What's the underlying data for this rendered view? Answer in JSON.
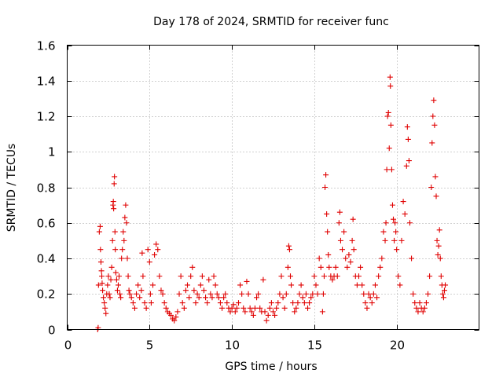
{
  "chart_data": {
    "type": "scatter",
    "title": "Day 178 of 2024, SRMTID for receiver func",
    "xlabel": "GPS time / hours",
    "ylabel": "SRMTID / TECUs",
    "xlim": [
      0,
      25
    ],
    "ylim": [
      0,
      1.6
    ],
    "xticks": [
      0,
      5,
      10,
      15,
      20
    ],
    "xtick_labels": [
      "0",
      "5",
      "10",
      "15",
      "20"
    ],
    "yticks": [
      0,
      0.2,
      0.4,
      0.6,
      0.8,
      1.0,
      1.2,
      1.4,
      1.6
    ],
    "ytick_labels": [
      "0",
      "0.2",
      "0.4",
      "0.6",
      "0.8",
      "1",
      "1.2",
      "1.4",
      "1.6"
    ],
    "grid": true,
    "marker": "plus",
    "color": "#e00000",
    "series": [
      {
        "name": "SRMTID",
        "points": [
          [
            1.85,
            0.0
          ],
          [
            1.88,
            0.01
          ],
          [
            1.9,
            0.25
          ],
          [
            1.95,
            0.55
          ],
          [
            2.0,
            0.58
          ],
          [
            2.02,
            0.45
          ],
          [
            2.05,
            0.38
          ],
          [
            2.08,
            0.33
          ],
          [
            2.1,
            0.3
          ],
          [
            2.12,
            0.26
          ],
          [
            2.15,
            0.22
          ],
          [
            2.2,
            0.18
          ],
          [
            2.25,
            0.15
          ],
          [
            2.3,
            0.12
          ],
          [
            2.35,
            0.09
          ],
          [
            2.4,
            0.2
          ],
          [
            2.45,
            0.25
          ],
          [
            2.5,
            0.3
          ],
          [
            2.55,
            0.2
          ],
          [
            2.6,
            0.18
          ],
          [
            2.65,
            0.28
          ],
          [
            2.7,
            0.35
          ],
          [
            2.75,
            0.5
          ],
          [
            2.78,
            0.7
          ],
          [
            2.8,
            0.72
          ],
          [
            2.82,
            0.68
          ],
          [
            2.85,
            0.82
          ],
          [
            2.87,
            0.86
          ],
          [
            2.9,
            0.55
          ],
          [
            2.92,
            0.45
          ],
          [
            2.95,
            0.32
          ],
          [
            3.0,
            0.28
          ],
          [
            3.05,
            0.22
          ],
          [
            3.1,
            0.25
          ],
          [
            3.15,
            0.3
          ],
          [
            3.2,
            0.2
          ],
          [
            3.25,
            0.18
          ],
          [
            3.3,
            0.4
          ],
          [
            3.35,
            0.45
          ],
          [
            3.4,
            0.55
          ],
          [
            3.45,
            0.5
          ],
          [
            3.5,
            0.63
          ],
          [
            3.55,
            0.7
          ],
          [
            3.6,
            0.6
          ],
          [
            3.65,
            0.4
          ],
          [
            3.7,
            0.3
          ],
          [
            3.75,
            0.22
          ],
          [
            3.8,
            0.2
          ],
          [
            3.9,
            0.18
          ],
          [
            4.0,
            0.15
          ],
          [
            4.1,
            0.12
          ],
          [
            4.2,
            0.2
          ],
          [
            4.3,
            0.25
          ],
          [
            4.4,
            0.18
          ],
          [
            4.5,
            0.22
          ],
          [
            4.55,
            0.43
          ],
          [
            4.6,
            0.3
          ],
          [
            4.7,
            0.15
          ],
          [
            4.8,
            0.12
          ],
          [
            4.9,
            0.45
          ],
          [
            5.0,
            0.38
          ],
          [
            5.05,
            0.2
          ],
          [
            5.1,
            0.15
          ],
          [
            5.2,
            0.25
          ],
          [
            5.3,
            0.42
          ],
          [
            5.4,
            0.48
          ],
          [
            5.5,
            0.45
          ],
          [
            5.6,
            0.3
          ],
          [
            5.7,
            0.22
          ],
          [
            5.8,
            0.2
          ],
          [
            5.9,
            0.15
          ],
          [
            6.0,
            0.12
          ],
          [
            6.1,
            0.1
          ],
          [
            6.2,
            0.09
          ],
          [
            6.3,
            0.08
          ],
          [
            6.4,
            0.06
          ],
          [
            6.5,
            0.05
          ],
          [
            6.6,
            0.07
          ],
          [
            6.7,
            0.1
          ],
          [
            6.8,
            0.2
          ],
          [
            6.9,
            0.3
          ],
          [
            7.0,
            0.15
          ],
          [
            7.1,
            0.12
          ],
          [
            7.2,
            0.22
          ],
          [
            7.3,
            0.25
          ],
          [
            7.4,
            0.18
          ],
          [
            7.5,
            0.3
          ],
          [
            7.6,
            0.35
          ],
          [
            7.7,
            0.22
          ],
          [
            7.8,
            0.15
          ],
          [
            7.9,
            0.2
          ],
          [
            8.0,
            0.18
          ],
          [
            8.1,
            0.25
          ],
          [
            8.2,
            0.3
          ],
          [
            8.3,
            0.22
          ],
          [
            8.4,
            0.18
          ],
          [
            8.5,
            0.15
          ],
          [
            8.6,
            0.28
          ],
          [
            8.7,
            0.2
          ],
          [
            8.8,
            0.18
          ],
          [
            8.9,
            0.3
          ],
          [
            9.0,
            0.25
          ],
          [
            9.1,
            0.2
          ],
          [
            9.2,
            0.18
          ],
          [
            9.3,
            0.15
          ],
          [
            9.4,
            0.12
          ],
          [
            9.5,
            0.18
          ],
          [
            9.6,
            0.2
          ],
          [
            9.7,
            0.15
          ],
          [
            9.8,
            0.12
          ],
          [
            9.9,
            0.1
          ],
          [
            10.0,
            0.12
          ],
          [
            10.1,
            0.14
          ],
          [
            10.2,
            0.1
          ],
          [
            10.3,
            0.12
          ],
          [
            10.4,
            0.15
          ],
          [
            10.5,
            0.25
          ],
          [
            10.6,
            0.2
          ],
          [
            10.7,
            0.12
          ],
          [
            10.8,
            0.1
          ],
          [
            10.9,
            0.27
          ],
          [
            11.0,
            0.2
          ],
          [
            11.1,
            0.12
          ],
          [
            11.2,
            0.1
          ],
          [
            11.3,
            0.08
          ],
          [
            11.4,
            0.12
          ],
          [
            11.5,
            0.18
          ],
          [
            11.6,
            0.2
          ],
          [
            11.7,
            0.12
          ],
          [
            11.8,
            0.1
          ],
          [
            11.9,
            0.28
          ],
          [
            12.0,
            0.1
          ],
          [
            12.1,
            0.05
          ],
          [
            12.2,
            0.08
          ],
          [
            12.3,
            0.12
          ],
          [
            12.4,
            0.15
          ],
          [
            12.5,
            0.1
          ],
          [
            12.6,
            0.08
          ],
          [
            12.7,
            0.12
          ],
          [
            12.8,
            0.15
          ],
          [
            12.9,
            0.2
          ],
          [
            13.0,
            0.3
          ],
          [
            13.1,
            0.18
          ],
          [
            13.2,
            0.12
          ],
          [
            13.3,
            0.2
          ],
          [
            13.4,
            0.35
          ],
          [
            13.45,
            0.47
          ],
          [
            13.5,
            0.45
          ],
          [
            13.55,
            0.3
          ],
          [
            13.6,
            0.25
          ],
          [
            13.7,
            0.15
          ],
          [
            13.8,
            0.1
          ],
          [
            13.9,
            0.12
          ],
          [
            14.0,
            0.15
          ],
          [
            14.1,
            0.2
          ],
          [
            14.2,
            0.25
          ],
          [
            14.3,
            0.18
          ],
          [
            14.4,
            0.15
          ],
          [
            14.5,
            0.2
          ],
          [
            14.6,
            0.12
          ],
          [
            14.7,
            0.15
          ],
          [
            14.8,
            0.18
          ],
          [
            14.9,
            0.2
          ],
          [
            15.0,
            0.3
          ],
          [
            15.1,
            0.25
          ],
          [
            15.2,
            0.2
          ],
          [
            15.3,
            0.4
          ],
          [
            15.4,
            0.35
          ],
          [
            15.5,
            0.1
          ],
          [
            15.55,
            0.2
          ],
          [
            15.6,
            0.3
          ],
          [
            15.65,
            0.8
          ],
          [
            15.7,
            0.87
          ],
          [
            15.75,
            0.65
          ],
          [
            15.8,
            0.55
          ],
          [
            15.85,
            0.42
          ],
          [
            15.9,
            0.35
          ],
          [
            16.0,
            0.3
          ],
          [
            16.1,
            0.28
          ],
          [
            16.2,
            0.3
          ],
          [
            16.3,
            0.35
          ],
          [
            16.4,
            0.3
          ],
          [
            16.5,
            0.6
          ],
          [
            16.55,
            0.66
          ],
          [
            16.6,
            0.5
          ],
          [
            16.7,
            0.45
          ],
          [
            16.8,
            0.55
          ],
          [
            16.9,
            0.4
          ],
          [
            17.0,
            0.35
          ],
          [
            17.1,
            0.42
          ],
          [
            17.2,
            0.38
          ],
          [
            17.3,
            0.5
          ],
          [
            17.35,
            0.62
          ],
          [
            17.4,
            0.45
          ],
          [
            17.5,
            0.3
          ],
          [
            17.6,
            0.25
          ],
          [
            17.7,
            0.3
          ],
          [
            17.8,
            0.35
          ],
          [
            17.9,
            0.25
          ],
          [
            18.0,
            0.2
          ],
          [
            18.1,
            0.15
          ],
          [
            18.2,
            0.12
          ],
          [
            18.3,
            0.2
          ],
          [
            18.4,
            0.18
          ],
          [
            18.5,
            0.15
          ],
          [
            18.6,
            0.2
          ],
          [
            18.7,
            0.25
          ],
          [
            18.8,
            0.18
          ],
          [
            18.9,
            0.3
          ],
          [
            19.0,
            0.35
          ],
          [
            19.1,
            0.4
          ],
          [
            19.2,
            0.55
          ],
          [
            19.3,
            0.5
          ],
          [
            19.35,
            0.6
          ],
          [
            19.4,
            0.9
          ],
          [
            19.45,
            1.2
          ],
          [
            19.5,
            1.22
          ],
          [
            19.55,
            1.02
          ],
          [
            19.6,
            1.42
          ],
          [
            19.62,
            1.37
          ],
          [
            19.65,
            1.15
          ],
          [
            19.7,
            0.9
          ],
          [
            19.75,
            0.7
          ],
          [
            19.8,
            0.62
          ],
          [
            19.85,
            0.5
          ],
          [
            19.9,
            0.6
          ],
          [
            19.95,
            0.55
          ],
          [
            20.0,
            0.45
          ],
          [
            20.1,
            0.3
          ],
          [
            20.2,
            0.25
          ],
          [
            20.3,
            0.5
          ],
          [
            20.4,
            0.72
          ],
          [
            20.5,
            0.65
          ],
          [
            20.6,
            0.92
          ],
          [
            20.65,
            1.14
          ],
          [
            20.7,
            1.07
          ],
          [
            20.75,
            0.95
          ],
          [
            20.8,
            0.6
          ],
          [
            20.9,
            0.4
          ],
          [
            21.0,
            0.2
          ],
          [
            21.1,
            0.15
          ],
          [
            21.2,
            0.12
          ],
          [
            21.3,
            0.1
          ],
          [
            21.4,
            0.15
          ],
          [
            21.5,
            0.12
          ],
          [
            21.6,
            0.1
          ],
          [
            21.7,
            0.12
          ],
          [
            21.8,
            0.15
          ],
          [
            21.9,
            0.2
          ],
          [
            22.0,
            0.3
          ],
          [
            22.1,
            0.8
          ],
          [
            22.15,
            1.05
          ],
          [
            22.2,
            1.2
          ],
          [
            22.25,
            1.29
          ],
          [
            22.3,
            1.15
          ],
          [
            22.35,
            0.86
          ],
          [
            22.4,
            0.75
          ],
          [
            22.45,
            0.5
          ],
          [
            22.5,
            0.42
          ],
          [
            22.55,
            0.47
          ],
          [
            22.6,
            0.56
          ],
          [
            22.65,
            0.4
          ],
          [
            22.7,
            0.3
          ],
          [
            22.75,
            0.25
          ],
          [
            22.8,
            0.2
          ],
          [
            22.85,
            0.18
          ],
          [
            22.9,
            0.22
          ],
          [
            22.95,
            0.25
          ]
        ]
      }
    ]
  }
}
